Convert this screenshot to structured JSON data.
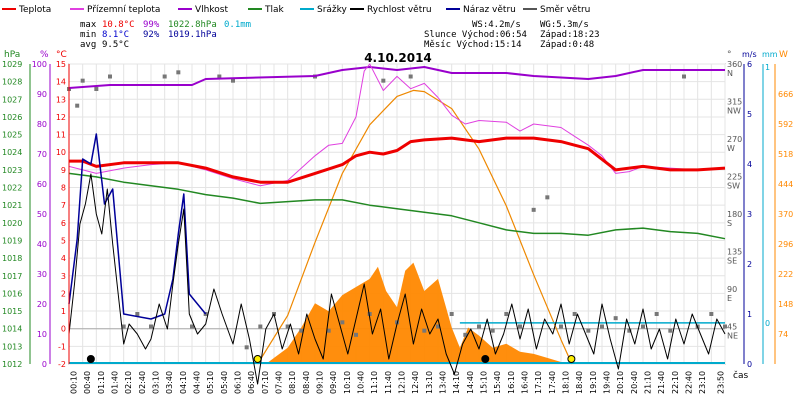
{
  "chart_data": {
    "type": "line",
    "title": "4.10.2014",
    "legend": [
      {
        "label": "Teplota",
        "color": "#ee0000"
      },
      {
        "label": "Přízemní teplota",
        "color": "#e040e0"
      },
      {
        "label": "Vlhkost",
        "color": "#9900cc"
      },
      {
        "label": "Tlak",
        "color": "#228822"
      },
      {
        "label": "Srážky",
        "color": "#00aacc"
      },
      {
        "label": "Rychlost větru",
        "color": "#000000"
      },
      {
        "label": "Náraz větru",
        "color": "#000099"
      },
      {
        "label": "Směr větru",
        "color": "#555555"
      }
    ],
    "stats": {
      "max": {
        "label": "max",
        "temp": "10.8°C",
        "hum": "99%",
        "press": "1022.8hPa",
        "rain": "0.1mm"
      },
      "min": {
        "label": "min",
        "temp": "8.1°C",
        "hum": "92%",
        "press": "1019.1hPa"
      },
      "avg": {
        "label": "avg",
        "temp": "9.5°C"
      }
    },
    "info": {
      "ws": "WS:4.2m/s",
      "wg": "WG:5.3m/s",
      "sun": "Slunce Východ:06:54",
      "sun_set": "Západ:18:23",
      "moon": "Měsíc Východ:15:14",
      "moon_set": "Západ:0:48"
    },
    "axes": {
      "hpa_label": "hPa",
      "hum_label": "%",
      "temp_label": "°C",
      "dir_label": "°",
      "ms_label": "m/s",
      "mm_label": "mm",
      "w_label": "W",
      "time_label": "čas",
      "hpa_ticks": [
        "1029",
        "1028",
        "1027",
        "1026",
        "1025",
        "1024",
        "1023",
        "1022",
        "1021",
        "1020",
        "1019",
        "1018",
        "1017",
        "1016",
        "1015",
        "1014",
        "1013",
        "1012"
      ],
      "hum_ticks": [
        "100",
        "90",
        "80",
        "70",
        "60",
        "50",
        "40",
        "30",
        "20",
        "10",
        "0"
      ],
      "temp_ticks": [
        "15",
        "14",
        "13",
        "12",
        "11",
        "10",
        "9",
        "8",
        "7",
        "6",
        "5",
        "4",
        "3",
        "2",
        "1",
        "0",
        "-1",
        "-2"
      ],
      "dir_ticks": [
        "360",
        "315",
        "270",
        "225",
        "180",
        "135",
        "90",
        "45"
      ],
      "dir_names": [
        "N",
        "NW",
        "W",
        "SW",
        "S",
        "SE",
        "E",
        "NE"
      ],
      "ms_ticks": [
        "6",
        "5",
        "4",
        "3",
        "2",
        "1",
        "0"
      ],
      "mm_ticks": [
        "1",
        "0"
      ],
      "w_ticks": [
        "666",
        "592",
        "518",
        "444",
        "370",
        "296",
        "222",
        "148",
        "74"
      ],
      "time_ticks": [
        "00:10",
        "00:40",
        "01:10",
        "01:40",
        "02:10",
        "02:40",
        "03:10",
        "03:40",
        "04:10",
        "04:40",
        "05:10",
        "05:40",
        "06:10",
        "06:40",
        "07:10",
        "07:40",
        "08:10",
        "08:40",
        "09:10",
        "09:40",
        "10:10",
        "10:40",
        "11:10",
        "11:40",
        "12:10",
        "12:40",
        "13:10",
        "13:40",
        "14:10",
        "14:40",
        "15:10",
        "15:40",
        "16:10",
        "16:40",
        "17:10",
        "17:40",
        "18:10",
        "18:40",
        "19:10",
        "19:40",
        "20:10",
        "20:40",
        "21:10",
        "21:40",
        "22:10",
        "22:40",
        "23:10",
        "23:50"
      ]
    },
    "ranges": {
      "temp": [
        -2,
        15
      ],
      "humidity": [
        0,
        100
      ],
      "pressure": [
        1012,
        1029
      ],
      "wind": [
        0,
        6
      ],
      "direction": [
        0,
        360
      ],
      "solar": [
        0,
        740
      ]
    },
    "series": {
      "temperature": [
        [
          0,
          9.5
        ],
        [
          0.5,
          9.5
        ],
        [
          1,
          9.2
        ],
        [
          2,
          9.4
        ],
        [
          3,
          9.4
        ],
        [
          4,
          9.4
        ],
        [
          5,
          9.1
        ],
        [
          6,
          8.6
        ],
        [
          7,
          8.3
        ],
        [
          8,
          8.3
        ],
        [
          9,
          8.8
        ],
        [
          10,
          9.3
        ],
        [
          10.5,
          9.8
        ],
        [
          11,
          10.0
        ],
        [
          11.5,
          9.9
        ],
        [
          12,
          10.1
        ],
        [
          12.5,
          10.6
        ],
        [
          13,
          10.7
        ],
        [
          14,
          10.8
        ],
        [
          15,
          10.6
        ],
        [
          16,
          10.8
        ],
        [
          17,
          10.8
        ],
        [
          18,
          10.6
        ],
        [
          18.5,
          10.4
        ],
        [
          19,
          10.2
        ],
        [
          19.5,
          9.6
        ],
        [
          20,
          9.0
        ],
        [
          21,
          9.2
        ],
        [
          22,
          9.0
        ],
        [
          23,
          9.0
        ],
        [
          24,
          9.1
        ]
      ],
      "ground_temp": [
        [
          0,
          9.2
        ],
        [
          0.5,
          9.0
        ],
        [
          1,
          8.8
        ],
        [
          2,
          9.1
        ],
        [
          3,
          9.3
        ],
        [
          4,
          9.4
        ],
        [
          5,
          9.0
        ],
        [
          6,
          8.5
        ],
        [
          7,
          8.1
        ],
        [
          8,
          8.4
        ],
        [
          9,
          9.8
        ],
        [
          9.5,
          10.4
        ],
        [
          10,
          10.5
        ],
        [
          10.5,
          12.0
        ],
        [
          10.8,
          14.6
        ],
        [
          11,
          15.0
        ],
        [
          11.5,
          13.5
        ],
        [
          12,
          14.3
        ],
        [
          12.5,
          13.6
        ],
        [
          13,
          13.9
        ],
        [
          13.5,
          13.1
        ],
        [
          14,
          12.1
        ],
        [
          14.5,
          11.6
        ],
        [
          15,
          11.8
        ],
        [
          16,
          11.7
        ],
        [
          16.5,
          11.2
        ],
        [
          17,
          11.6
        ],
        [
          18,
          11.4
        ],
        [
          18.5,
          10.9
        ],
        [
          19,
          10.4
        ],
        [
          19.5,
          9.8
        ],
        [
          20,
          8.8
        ],
        [
          20.5,
          8.9
        ],
        [
          21,
          9.2
        ],
        [
          22,
          9.1
        ],
        [
          23,
          9.0
        ],
        [
          24,
          9.1
        ]
      ],
      "humidity": [
        [
          0,
          92
        ],
        [
          1.5,
          93
        ],
        [
          4.5,
          93
        ],
        [
          5,
          95
        ],
        [
          9,
          96
        ],
        [
          10,
          98
        ],
        [
          11,
          99
        ],
        [
          12,
          98
        ],
        [
          13,
          99
        ],
        [
          13.5,
          98
        ],
        [
          14,
          97
        ],
        [
          16,
          97
        ],
        [
          17,
          96
        ],
        [
          19,
          95
        ],
        [
          20,
          96
        ],
        [
          21,
          98
        ],
        [
          24,
          98
        ]
      ],
      "pressure": [
        [
          0,
          1022.8
        ],
        [
          1,
          1022.6
        ],
        [
          2,
          1022.3
        ],
        [
          3,
          1022.1
        ],
        [
          4,
          1021.9
        ],
        [
          5,
          1021.6
        ],
        [
          6,
          1021.4
        ],
        [
          7,
          1021.1
        ],
        [
          8,
          1021.2
        ],
        [
          9,
          1021.3
        ],
        [
          10,
          1021.3
        ],
        [
          11,
          1021.0
        ],
        [
          12,
          1020.8
        ],
        [
          13,
          1020.6
        ],
        [
          14,
          1020.4
        ],
        [
          15,
          1020.0
        ],
        [
          16,
          1019.6
        ],
        [
          17,
          1019.4
        ],
        [
          18,
          1019.4
        ],
        [
          19,
          1019.3
        ],
        [
          20,
          1019.6
        ],
        [
          21,
          1019.7
        ],
        [
          22,
          1019.5
        ],
        [
          23,
          1019.4
        ],
        [
          24,
          1019.1
        ]
      ],
      "gust": [
        [
          0,
          1.2
        ],
        [
          0.3,
          2.5
        ],
        [
          0.5,
          4.1
        ],
        [
          0.8,
          4.0
        ],
        [
          1,
          4.6
        ],
        [
          1.3,
          3.2
        ],
        [
          1.6,
          3.5
        ],
        [
          2,
          1.0
        ],
        [
          3,
          0.9
        ],
        [
          3.5,
          1.0
        ],
        [
          3.8,
          1.7
        ],
        [
          4,
          2.6
        ],
        [
          4.2,
          3.4
        ],
        [
          4.4,
          1.4
        ],
        [
          5,
          1.0
        ]
      ],
      "wind": [
        [
          0,
          0.6
        ],
        [
          0.2,
          1.6
        ],
        [
          0.4,
          2.8
        ],
        [
          0.6,
          3.2
        ],
        [
          0.8,
          3.8
        ],
        [
          1,
          3.0
        ],
        [
          1.2,
          2.6
        ],
        [
          1.4,
          3.5
        ],
        [
          1.6,
          2.4
        ],
        [
          1.8,
          1.4
        ],
        [
          2,
          0.4
        ],
        [
          2.2,
          0.8
        ],
        [
          2.5,
          0.6
        ],
        [
          2.8,
          0.3
        ],
        [
          3,
          0.5
        ],
        [
          3.3,
          1.2
        ],
        [
          3.6,
          0.7
        ],
        [
          3.8,
          1.6
        ],
        [
          4,
          2.4
        ],
        [
          4.2,
          3.1
        ],
        [
          4.4,
          1.0
        ],
        [
          4.7,
          0.6
        ],
        [
          5,
          0.8
        ],
        [
          5.3,
          1.5
        ],
        [
          5.6,
          1.0
        ],
        [
          6,
          0.4
        ],
        [
          6.3,
          1.2
        ],
        [
          6.6,
          0.5
        ],
        [
          6.9,
          -0.4
        ],
        [
          7.2,
          0.7
        ],
        [
          7.5,
          1.0
        ],
        [
          7.8,
          0.3
        ],
        [
          8.1,
          0.8
        ],
        [
          8.4,
          0.2
        ],
        [
          8.7,
          1.0
        ],
        [
          9,
          0.5
        ],
        [
          9.3,
          0.1
        ],
        [
          9.6,
          1.4
        ],
        [
          9.9,
          0.8
        ],
        [
          10.2,
          0.2
        ],
        [
          10.5,
          0.9
        ],
        [
          10.8,
          1.6
        ],
        [
          11.1,
          0.6
        ],
        [
          11.4,
          1.1
        ],
        [
          11.7,
          0.1
        ],
        [
          12,
          0.8
        ],
        [
          12.3,
          1.4
        ],
        [
          12.6,
          0.4
        ],
        [
          12.9,
          1.1
        ],
        [
          13.2,
          0.6
        ],
        [
          13.5,
          0.9
        ],
        [
          13.8,
          0.2
        ],
        [
          14.1,
          -0.2
        ],
        [
          14.4,
          0.4
        ],
        [
          14.7,
          0.7
        ],
        [
          15,
          0.3
        ],
        [
          15.3,
          0.9
        ],
        [
          15.6,
          0.2
        ],
        [
          15.9,
          0.6
        ],
        [
          16.2,
          1.2
        ],
        [
          16.5,
          0.5
        ],
        [
          16.8,
          1.1
        ],
        [
          17.1,
          0.3
        ],
        [
          17.4,
          0.9
        ],
        [
          17.7,
          0.6
        ],
        [
          18,
          1.2
        ],
        [
          18.3,
          0.4
        ],
        [
          18.6,
          1.0
        ],
        [
          18.9,
          0.6
        ],
        [
          19.2,
          0.2
        ],
        [
          19.5,
          1.2
        ],
        [
          19.8,
          0.5
        ],
        [
          20.1,
          -0.1
        ],
        [
          20.4,
          0.9
        ],
        [
          20.7,
          0.4
        ],
        [
          21,
          1.1
        ],
        [
          21.3,
          0.3
        ],
        [
          21.6,
          0.7
        ],
        [
          21.9,
          0.1
        ],
        [
          22.2,
          0.9
        ],
        [
          22.5,
          0.4
        ],
        [
          22.8,
          1.0
        ],
        [
          23.1,
          0.6
        ],
        [
          23.4,
          0.2
        ],
        [
          23.7,
          0.9
        ],
        [
          24,
          0.6
        ]
      ],
      "solar": [
        [
          0,
          0
        ],
        [
          7.2,
          0
        ],
        [
          8,
          40
        ],
        [
          8.5,
          90
        ],
        [
          9,
          150
        ],
        [
          9.5,
          130
        ],
        [
          10,
          170
        ],
        [
          10.5,
          190
        ],
        [
          11,
          210
        ],
        [
          11.3,
          240
        ],
        [
          11.6,
          180
        ],
        [
          12,
          140
        ],
        [
          12.3,
          230
        ],
        [
          12.6,
          250
        ],
        [
          13,
          180
        ],
        [
          13.5,
          210
        ],
        [
          14,
          90
        ],
        [
          14.3,
          40
        ],
        [
          14.6,
          90
        ],
        [
          15,
          70
        ],
        [
          15.5,
          40
        ],
        [
          16,
          50
        ],
        [
          16.5,
          30
        ],
        [
          17,
          25
        ],
        [
          17.5,
          15
        ],
        [
          18,
          5
        ],
        [
          18.4,
          0
        ],
        [
          24,
          0
        ]
      ],
      "solar_theoretical": [
        [
          6.9,
          0
        ],
        [
          8,
          120
        ],
        [
          9,
          300
        ],
        [
          10,
          470
        ],
        [
          11,
          590
        ],
        [
          12,
          660
        ],
        [
          12.6,
          675
        ],
        [
          13,
          672
        ],
        [
          14,
          630
        ],
        [
          15,
          530
        ],
        [
          16,
          390
        ],
        [
          17,
          220
        ],
        [
          18,
          60
        ],
        [
          18.4,
          0
        ]
      ],
      "direction": [
        [
          0,
          330
        ],
        [
          0.3,
          310
        ],
        [
          0.5,
          340
        ],
        [
          1,
          330
        ],
        [
          1.5,
          345
        ],
        [
          2,
          45
        ],
        [
          2.5,
          60
        ],
        [
          3,
          45
        ],
        [
          3.5,
          345
        ],
        [
          4,
          350
        ],
        [
          4.5,
          45
        ],
        [
          5,
          60
        ],
        [
          5.5,
          345
        ],
        [
          6,
          340
        ],
        [
          6.5,
          20
        ],
        [
          7,
          45
        ],
        [
          7.5,
          60
        ],
        [
          8,
          45
        ],
        [
          8.5,
          40
        ],
        [
          9,
          345
        ],
        [
          9.5,
          40
        ],
        [
          10,
          50
        ],
        [
          10.5,
          35
        ],
        [
          11,
          60
        ],
        [
          11.5,
          340
        ],
        [
          12,
          50
        ],
        [
          12.5,
          345
        ],
        [
          13,
          40
        ],
        [
          13.5,
          45
        ],
        [
          14,
          60
        ],
        [
          14.5,
          35
        ],
        [
          15,
          45
        ],
        [
          15.5,
          40
        ],
        [
          16,
          60
        ],
        [
          16.5,
          45
        ],
        [
          17,
          185
        ],
        [
          17.5,
          200
        ],
        [
          18,
          45
        ],
        [
          18.5,
          60
        ],
        [
          19,
          40
        ],
        [
          19.5,
          45
        ],
        [
          20,
          55
        ],
        [
          20.5,
          40
        ],
        [
          21,
          45
        ],
        [
          21.5,
          60
        ],
        [
          22,
          40
        ],
        [
          22.5,
          345
        ],
        [
          23,
          45
        ],
        [
          23.5,
          60
        ],
        [
          24,
          45
        ]
      ]
    },
    "markers": {
      "sunrise": 6.9,
      "sunset": 18.38,
      "moonrise": 15.23,
      "moonset": 0.8
    }
  }
}
